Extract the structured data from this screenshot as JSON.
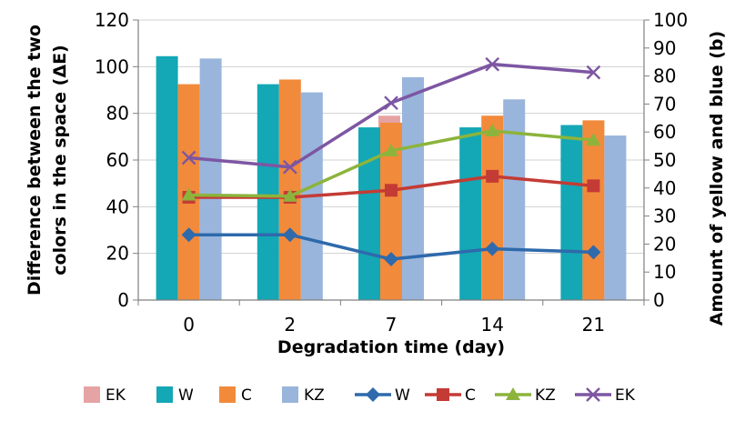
{
  "chart_data": {
    "type": "bar",
    "categories": [
      "0",
      "2",
      "7",
      "14",
      "21"
    ],
    "xlabel": "Degradation time (day)",
    "ylabel_left": "Difference between the two colors in the space (ΔE)",
    "ylabel_right": "Amount of yellow and blue (b)",
    "ylim_left": [
      0,
      120
    ],
    "yticks_left": [
      0,
      20,
      40,
      60,
      80,
      100,
      120
    ],
    "ylim_right": [
      0,
      100
    ],
    "yticks_right": [
      0,
      10,
      20,
      30,
      40,
      50,
      60,
      70,
      80,
      90,
      100
    ],
    "grid": true,
    "legend_position": "bottom",
    "bar_series": [
      {
        "name": "EK",
        "color": "#e6a3a4",
        "values": [
          null,
          null,
          79,
          null,
          null
        ]
      },
      {
        "name": "W",
        "color": "#14a7b5",
        "values": [
          104.5,
          92.5,
          74,
          74,
          75
        ]
      },
      {
        "name": "C",
        "color": "#f28a3b",
        "values": [
          92.5,
          94.5,
          76,
          79,
          77
        ]
      },
      {
        "name": "KZ",
        "color": "#99b5dc",
        "values": [
          103.5,
          89,
          95.5,
          86,
          70.5
        ]
      }
    ],
    "line_series": [
      {
        "name": "W",
        "color": "#2e6aac",
        "marker": "diamond",
        "axis": "right",
        "values": [
          23.3,
          23.3,
          14.6,
          18.3,
          17.1
        ]
      },
      {
        "name": "C",
        "color": "#c43b35",
        "marker": "square",
        "axis": "right",
        "values": [
          36.7,
          36.7,
          39.2,
          44.2,
          40.8
        ]
      },
      {
        "name": "KZ",
        "color": "#8cb43c",
        "marker": "triangle",
        "axis": "right",
        "values": [
          37.5,
          37.1,
          53.3,
          60.4,
          57.1
        ]
      },
      {
        "name": "EK",
        "color": "#7d56a3",
        "marker": "x",
        "axis": "right",
        "values": [
          50.8,
          47.5,
          70.4,
          84.2,
          81.3
        ]
      }
    ],
    "legend": [
      {
        "kind": "bar",
        "name": "EK",
        "color": "#e6a3a4"
      },
      {
        "kind": "bar",
        "name": "W",
        "color": "#14a7b5"
      },
      {
        "kind": "bar",
        "name": "C",
        "color": "#f28a3b"
      },
      {
        "kind": "bar",
        "name": "KZ",
        "color": "#99b5dc"
      },
      {
        "kind": "line",
        "name": "W",
        "color": "#2e6aac",
        "marker": "diamond"
      },
      {
        "kind": "line",
        "name": "C",
        "color": "#c43b35",
        "marker": "square"
      },
      {
        "kind": "line",
        "name": "KZ",
        "color": "#8cb43c",
        "marker": "triangle"
      },
      {
        "kind": "line",
        "name": "EK",
        "color": "#7d56a3",
        "marker": "x"
      }
    ]
  }
}
